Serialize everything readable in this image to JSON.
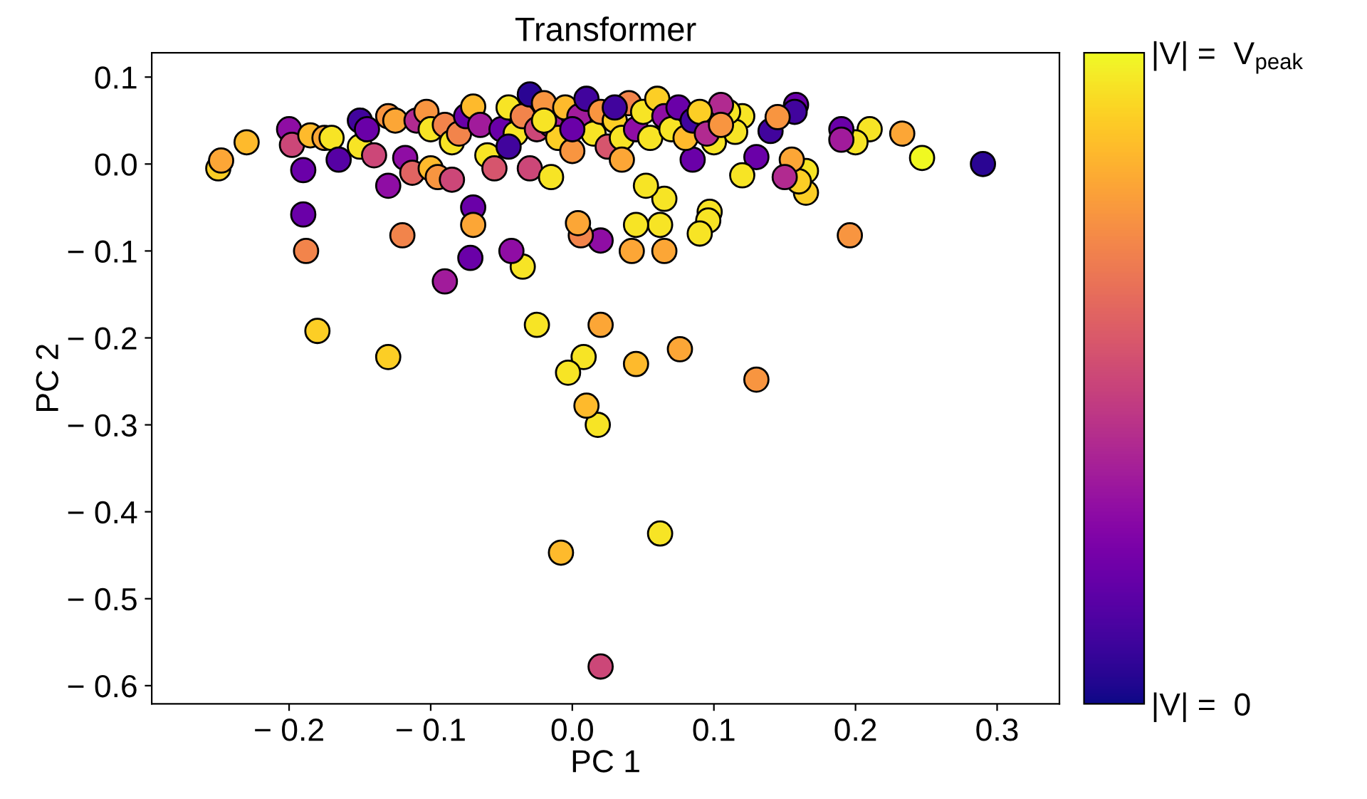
{
  "chart_data": {
    "type": "scatter",
    "title": "Transformer",
    "xlabel": "PC 1",
    "ylabel": "PC 2",
    "marker": "circle",
    "xlim": [
      -0.297,
      0.344
    ],
    "ylim": [
      -0.621,
      0.128
    ],
    "xticks": [
      {
        "value": -0.2,
        "label": "− 0.2"
      },
      {
        "value": -0.1,
        "label": "− 0.1"
      },
      {
        "value": 0,
        "label": "0.0"
      },
      {
        "value": 0.1,
        "label": "0.1"
      },
      {
        "value": 0.2,
        "label": "0.2"
      },
      {
        "value": 0.3,
        "label": "0.3"
      }
    ],
    "yticks": [
      {
        "value": 0.1,
        "label": "0.1"
      },
      {
        "value": 0,
        "label": "0.0"
      },
      {
        "value": -0.1,
        "label": "− 0.1"
      },
      {
        "value": -0.2,
        "label": "− 0.2"
      },
      {
        "value": -0.3,
        "label": "− 0.3"
      },
      {
        "value": -0.4,
        "label": "− 0.4"
      },
      {
        "value": -0.5,
        "label": "− 0.5"
      },
      {
        "value": -0.6,
        "label": "− 0.6"
      }
    ],
    "clim": [
      0,
      1
    ],
    "cticks": [
      {
        "value": 0,
        "label": "|V| =  0"
      },
      {
        "value": 1,
        "label": "|V| =  V$_{peak}$"
      }
    ],
    "x": [
      0.29,
      0.247,
      0.233,
      0.21,
      0.2,
      0.196,
      0.19,
      0.19,
      0.165,
      0.165,
      0.16,
      0.158,
      0.157,
      0.155,
      0.15,
      0.13,
      0.13,
      0.14,
      0.145,
      0.12,
      0.12,
      0.115,
      0.11,
      0.105,
      0.1,
      0.097,
      0.096,
      0.09,
      0.085,
      0.076,
      0.065,
      0.062,
      0.065,
      0.062,
      0.052,
      0.045,
      0.042,
      0.045,
      0.02,
      0.02,
      0.018,
      0.01,
      0.008,
      -0.003,
      -0.008,
      0.02,
      0.006,
      0.004,
      -0.025,
      -0.035,
      -0.043,
      -0.07,
      -0.07,
      -0.072,
      -0.09,
      -0.12,
      -0.13,
      -0.18,
      -0.188,
      -0.19,
      -0.25,
      -0.248,
      -0.23,
      -0.2,
      -0.198,
      -0.19,
      -0.185,
      -0.175,
      -0.17,
      -0.165,
      -0.15,
      -0.15,
      -0.145,
      -0.14,
      -0.13,
      -0.13,
      -0.125,
      -0.118,
      -0.113,
      -0.11,
      -0.1,
      -0.103,
      -0.1,
      -0.095,
      -0.09,
      -0.085,
      -0.085,
      -0.08,
      -0.075,
      -0.07,
      -0.065,
      -0.06,
      -0.055,
      -0.05,
      -0.045,
      -0.04,
      -0.035,
      -0.03,
      -0.03,
      -0.025,
      -0.02,
      -0.015,
      -0.015,
      -0.01,
      -0.005,
      0.0,
      0.005,
      0.01,
      0.015,
      0.02,
      0.025,
      0.03,
      0.035,
      0.04,
      0.045,
      0.05,
      0.055,
      0.06,
      0.065,
      0.07,
      0.075,
      0.08,
      0.085,
      0.09,
      0.095,
      0.105,
      -0.02,
      0.0,
      0.03,
      0.035,
      -0.045
    ],
    "values": [
      0.0,
      0.007,
      0.035,
      0.04,
      0.025,
      -0.082,
      0.04,
      0.028,
      -0.008,
      -0.033,
      -0.02,
      0.068,
      0.06,
      0.005,
      -0.015,
      0.008,
      -0.248,
      0.038,
      0.054,
      -0.013,
      0.055,
      0.037,
      0.06,
      0.068,
      0.025,
      -0.055,
      -0.065,
      -0.08,
      0.005,
      -0.213,
      -0.04,
      -0.07,
      -0.1,
      -0.425,
      -0.025,
      -0.07,
      -0.1,
      -0.23,
      -0.578,
      -0.185,
      -0.3,
      -0.278,
      -0.222,
      -0.24,
      -0.447,
      -0.088,
      -0.082,
      -0.068,
      -0.185,
      -0.118,
      -0.1,
      -0.05,
      -0.07,
      -0.108,
      -0.135,
      -0.082,
      -0.222,
      -0.192,
      -0.1,
      -0.058,
      -0.005,
      0.004,
      0.025,
      0.04,
      0.022,
      -0.007,
      0.033,
      0.03,
      0.03,
      0.005,
      0.05,
      0.02,
      0.04,
      0.01,
      0.055,
      -0.025,
      0.05,
      0.007,
      -0.01,
      0.05,
      -0.005,
      0.06,
      0.04,
      -0.015,
      0.045,
      -0.018,
      0.025,
      0.035,
      0.055,
      0.066,
      0.045,
      0.01,
      -0.005,
      0.04,
      0.065,
      0.035,
      0.055,
      0.08,
      -0.005,
      0.04,
      0.07,
      0.045,
      -0.015,
      0.03,
      0.065,
      0.015,
      0.055,
      0.075,
      0.035,
      0.06,
      0.02,
      0.05,
      0.03,
      0.07,
      0.04,
      0.06,
      0.03,
      0.075,
      0.055,
      0.04,
      0.065,
      0.03,
      0.05,
      0.06,
      0.035,
      0.045,
      0.05,
      0.04,
      0.065,
      0.005,
      0.02
    ],
    "cvalues": [
      0.05,
      1.0,
      0.8,
      0.95,
      0.95,
      0.75,
      0.2,
      0.35,
      0.95,
      0.9,
      0.9,
      0.2,
      0.1,
      0.8,
      0.4,
      0.2,
      0.75,
      0.1,
      0.75,
      0.95,
      0.95,
      0.95,
      0.95,
      0.4,
      0.95,
      0.95,
      0.95,
      0.95,
      0.2,
      0.8,
      0.95,
      0.95,
      0.8,
      0.95,
      0.95,
      0.95,
      0.8,
      0.85,
      0.5,
      0.8,
      0.95,
      0.85,
      0.95,
      0.95,
      0.85,
      0.3,
      0.7,
      0.8,
      0.95,
      0.95,
      0.3,
      0.2,
      0.8,
      0.2,
      0.35,
      0.7,
      0.9,
      0.9,
      0.7,
      0.2,
      0.9,
      0.8,
      0.85,
      0.3,
      0.5,
      0.2,
      0.85,
      0.8,
      0.95,
      0.15,
      0.1,
      0.95,
      0.2,
      0.5,
      0.75,
      0.3,
      0.8,
      0.3,
      0.6,
      0.4,
      0.85,
      0.75,
      0.95,
      0.75,
      0.7,
      0.5,
      0.95,
      0.7,
      0.2,
      0.85,
      0.35,
      0.95,
      0.55,
      0.2,
      0.95,
      0.95,
      0.7,
      0.05,
      0.5,
      0.5,
      0.75,
      0.35,
      0.95,
      0.9,
      0.85,
      0.75,
      0.35,
      0.1,
      0.95,
      0.75,
      0.55,
      0.9,
      0.95,
      0.7,
      0.3,
      0.95,
      0.95,
      0.9,
      0.3,
      0.95,
      0.2,
      0.85,
      0.1,
      0.9,
      0.4,
      0.75,
      0.95,
      0.2,
      0.1,
      0.8,
      0.1
    ]
  }
}
